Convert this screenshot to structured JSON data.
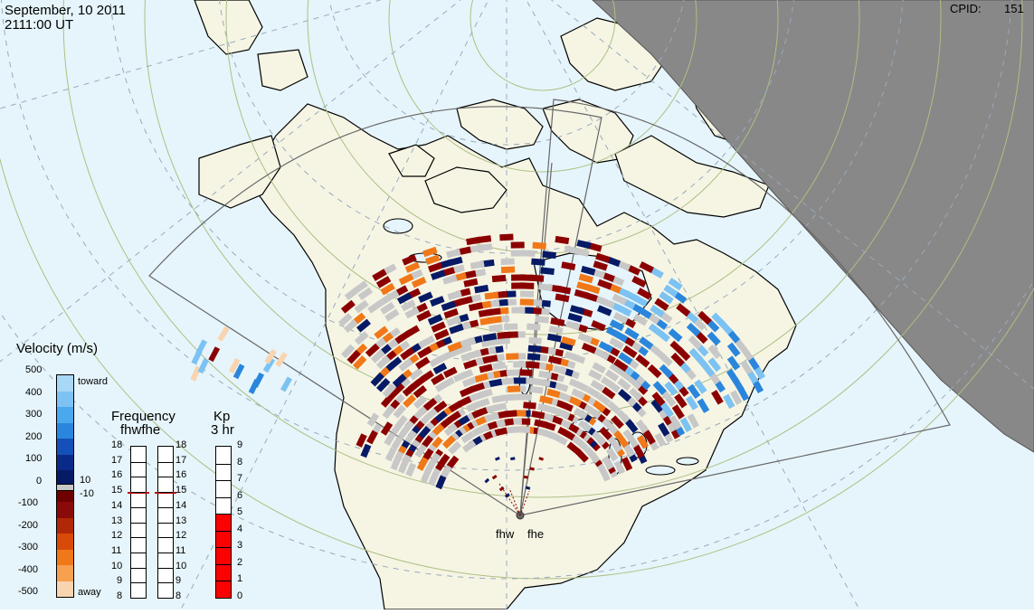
{
  "header": {
    "date": "September, 10 2011",
    "time": "2111:00 UT",
    "cpid_label": "CPID:",
    "cpid_value": "151"
  },
  "radars": {
    "west": "fhw",
    "east": "fhe"
  },
  "velocity_legend": {
    "title": "Velocity (m/s)",
    "ticks": [
      "500",
      "400",
      "300",
      "200",
      "100",
      "0",
      "-100",
      "-200",
      "-300",
      "-400",
      "-500"
    ],
    "toward_label": "toward",
    "away_label": "away",
    "threshold_pos": "10",
    "threshold_neg": "-10"
  },
  "frequency_panel": {
    "title": "Frequency",
    "subtitle": "fhwfhe",
    "ticks": [
      "18",
      "17",
      "16",
      "15",
      "14",
      "13",
      "12",
      "11",
      "10",
      "9",
      "8"
    ],
    "fhw_value": 15,
    "fhe_value": 15
  },
  "kp_panel": {
    "title": "Kp",
    "subtitle": "3 hr",
    "ticks": [
      "9",
      "8",
      "7",
      "6",
      "5",
      "4",
      "3",
      "2",
      "1",
      "0"
    ],
    "value": 5
  },
  "colors": {
    "ocean": "#e6f5fb",
    "land": "#f6f5e4",
    "night": "#888888",
    "toward_max": "#a0d4f4",
    "away_max": "#f8dcc0",
    "ground_scatter": "#c8c8c8",
    "kp_bar": "#ff0000",
    "freq_marker": "#c01010"
  }
}
